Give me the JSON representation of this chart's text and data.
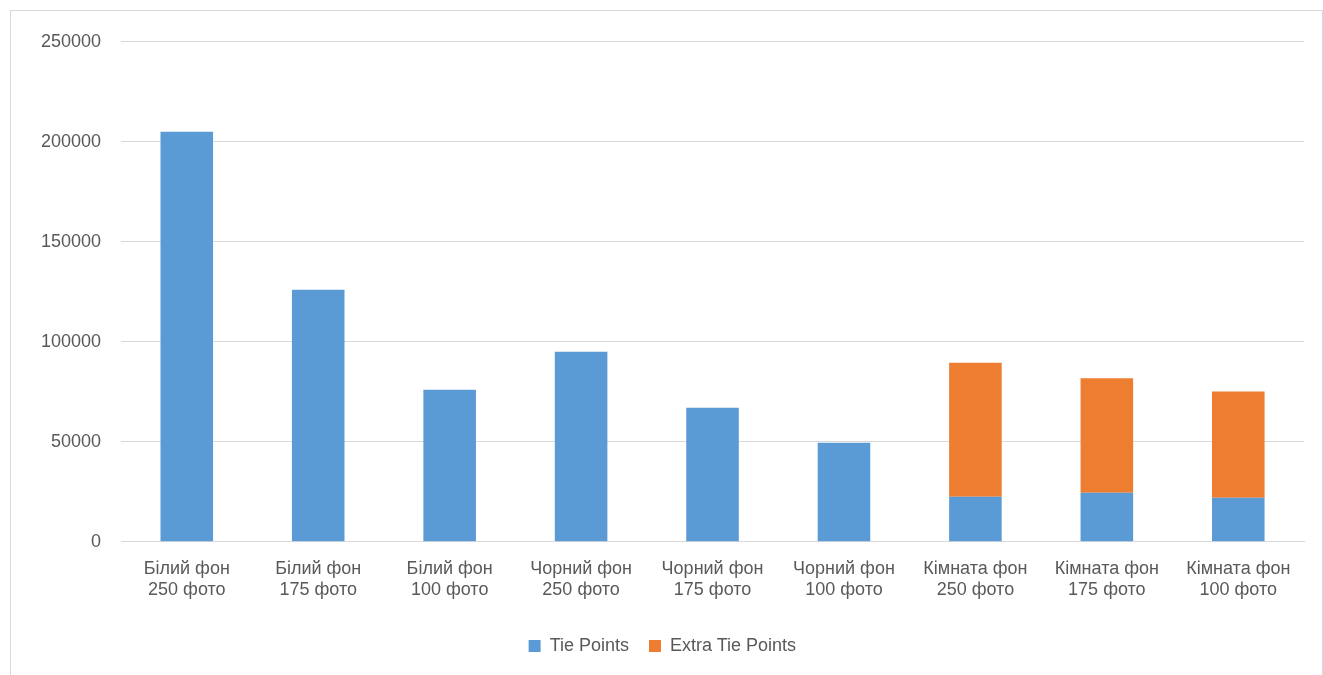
{
  "chart_data": {
    "type": "bar",
    "stacked": true,
    "categories": [
      "Білий фон 250 фото",
      "Білий фон 175 фото",
      "Білий фон 100 фото",
      "Чорний фон 250 фото",
      "Чорний фон 175 фото",
      "Чорний фон 100 фото",
      "Кімната фон 250 фото",
      "Кімната фон 175 фото",
      "Кімната фон 100 фото"
    ],
    "series": [
      {
        "name": "Tie Points",
        "color": "#5b9bd5",
        "values": [
          205000,
          126000,
          76000,
          95000,
          67000,
          49500,
          22500,
          24500,
          22000
        ]
      },
      {
        "name": "Extra Tie Points",
        "color": "#ed7d31",
        "values": [
          null,
          null,
          null,
          null,
          null,
          null,
          67000,
          57300,
          53200
        ]
      }
    ],
    "ylim": [
      0,
      250000
    ],
    "yticks": [
      0,
      50000,
      100000,
      150000,
      200000,
      250000
    ],
    "grid": "y",
    "legend": "bottom"
  }
}
